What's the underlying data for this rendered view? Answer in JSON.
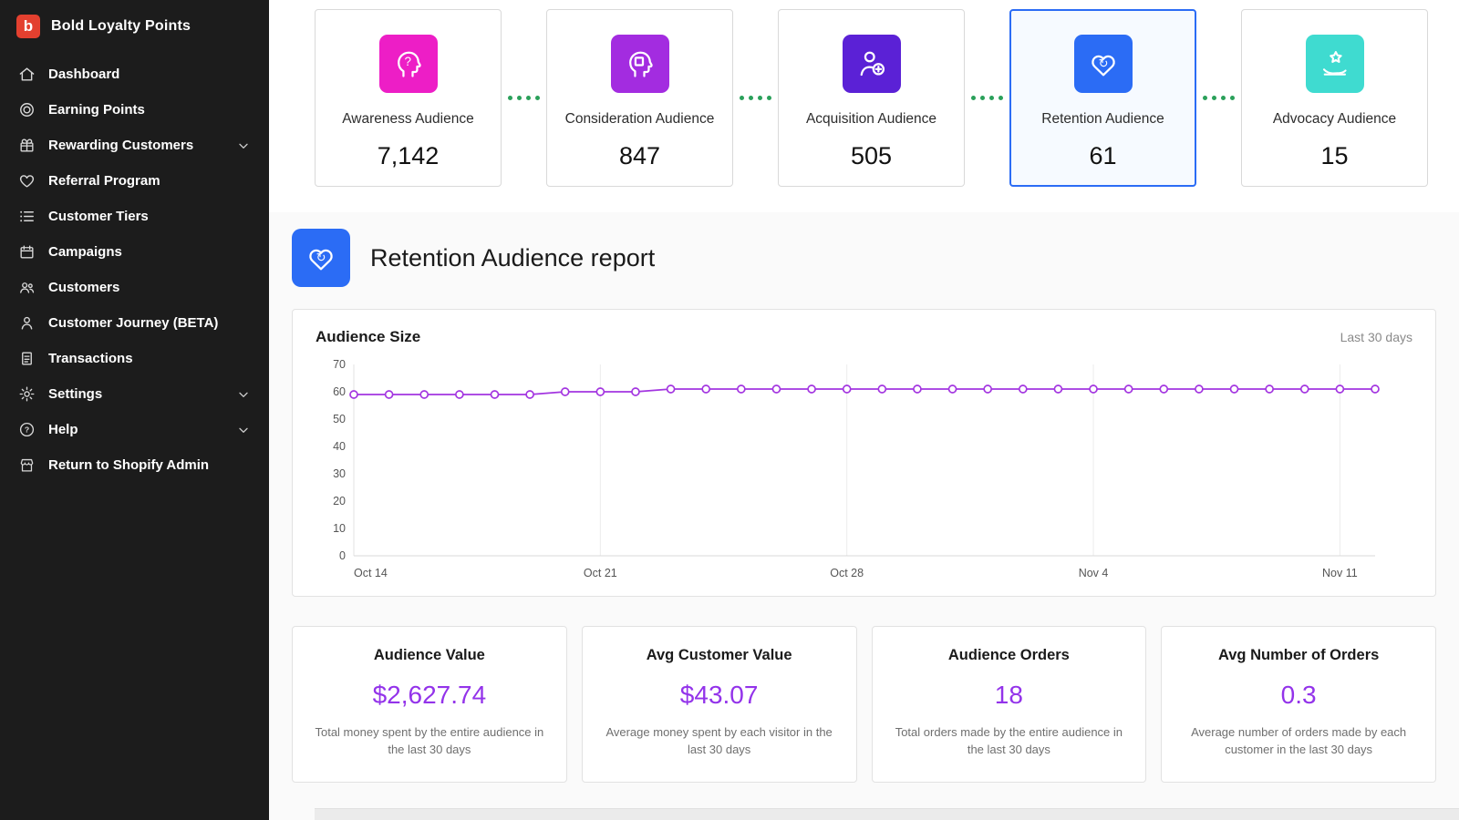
{
  "app": {
    "title": "Bold Loyalty Points",
    "logo_letter": "b"
  },
  "sidebar": {
    "items": [
      {
        "label": "Dashboard"
      },
      {
        "label": "Earning Points"
      },
      {
        "label": "Rewarding Customers"
      },
      {
        "label": "Referral Program"
      },
      {
        "label": "Customer Tiers"
      },
      {
        "label": "Campaigns"
      },
      {
        "label": "Customers"
      },
      {
        "label": "Customer Journey (BETA)"
      },
      {
        "label": "Transactions"
      },
      {
        "label": "Settings"
      },
      {
        "label": "Help"
      },
      {
        "label": "Return to Shopify Admin"
      }
    ]
  },
  "funnel": {
    "connector_color": "#2aa05a",
    "cards": [
      {
        "label": "Awareness Audience",
        "value": "7,142",
        "color": "#ed1ec6"
      },
      {
        "label": "Consideration Audience",
        "value": "847",
        "color": "#a32ce0"
      },
      {
        "label": "Acquisition Audience",
        "value": "505",
        "color": "#5b21d6"
      },
      {
        "label": "Retention Audience",
        "value": "61",
        "color": "#2b6cf5",
        "selected": true
      },
      {
        "label": "Advocacy Audience",
        "value": "15",
        "color": "#3fdbd0"
      }
    ]
  },
  "report": {
    "title": "Retention Audience report",
    "icon_color": "#2b6cf5"
  },
  "chart_data": {
    "type": "line",
    "title": "Audience Size",
    "range_label": "Last 30 days",
    "line_color": "#a335e0",
    "grid": true,
    "ylim": [
      0,
      70
    ],
    "y_ticks": [
      0,
      10,
      20,
      30,
      40,
      50,
      60,
      70
    ],
    "x_tick_labels": [
      "Oct 14",
      "Oct 21",
      "Oct 28",
      "Nov 4",
      "Nov 11"
    ],
    "x_tick_indices": [
      0,
      7,
      14,
      21,
      28
    ],
    "series": [
      {
        "name": "Audience Size",
        "values": [
          59,
          59,
          59,
          59,
          59,
          59,
          60,
          60,
          60,
          61,
          61,
          61,
          61,
          61,
          61,
          61,
          61,
          61,
          61,
          61,
          61,
          61,
          61,
          61,
          61,
          61,
          61,
          61,
          61,
          61
        ]
      }
    ]
  },
  "stat_value_color": "#9333ea",
  "stats": [
    {
      "title": "Audience Value",
      "value": "$2,627.74",
      "description": "Total money spent by the entire audience in the last 30 days"
    },
    {
      "title": "Avg Customer Value",
      "value": "$43.07",
      "description": "Average money spent by each visitor in the last 30 days"
    },
    {
      "title": "Audience Orders",
      "value": "18",
      "description": "Total orders made by the entire audience in the last 30 days"
    },
    {
      "title": "Avg Number of Orders",
      "value": "0.3",
      "description": "Average number of orders made by each customer in the last 30 days"
    }
  ]
}
